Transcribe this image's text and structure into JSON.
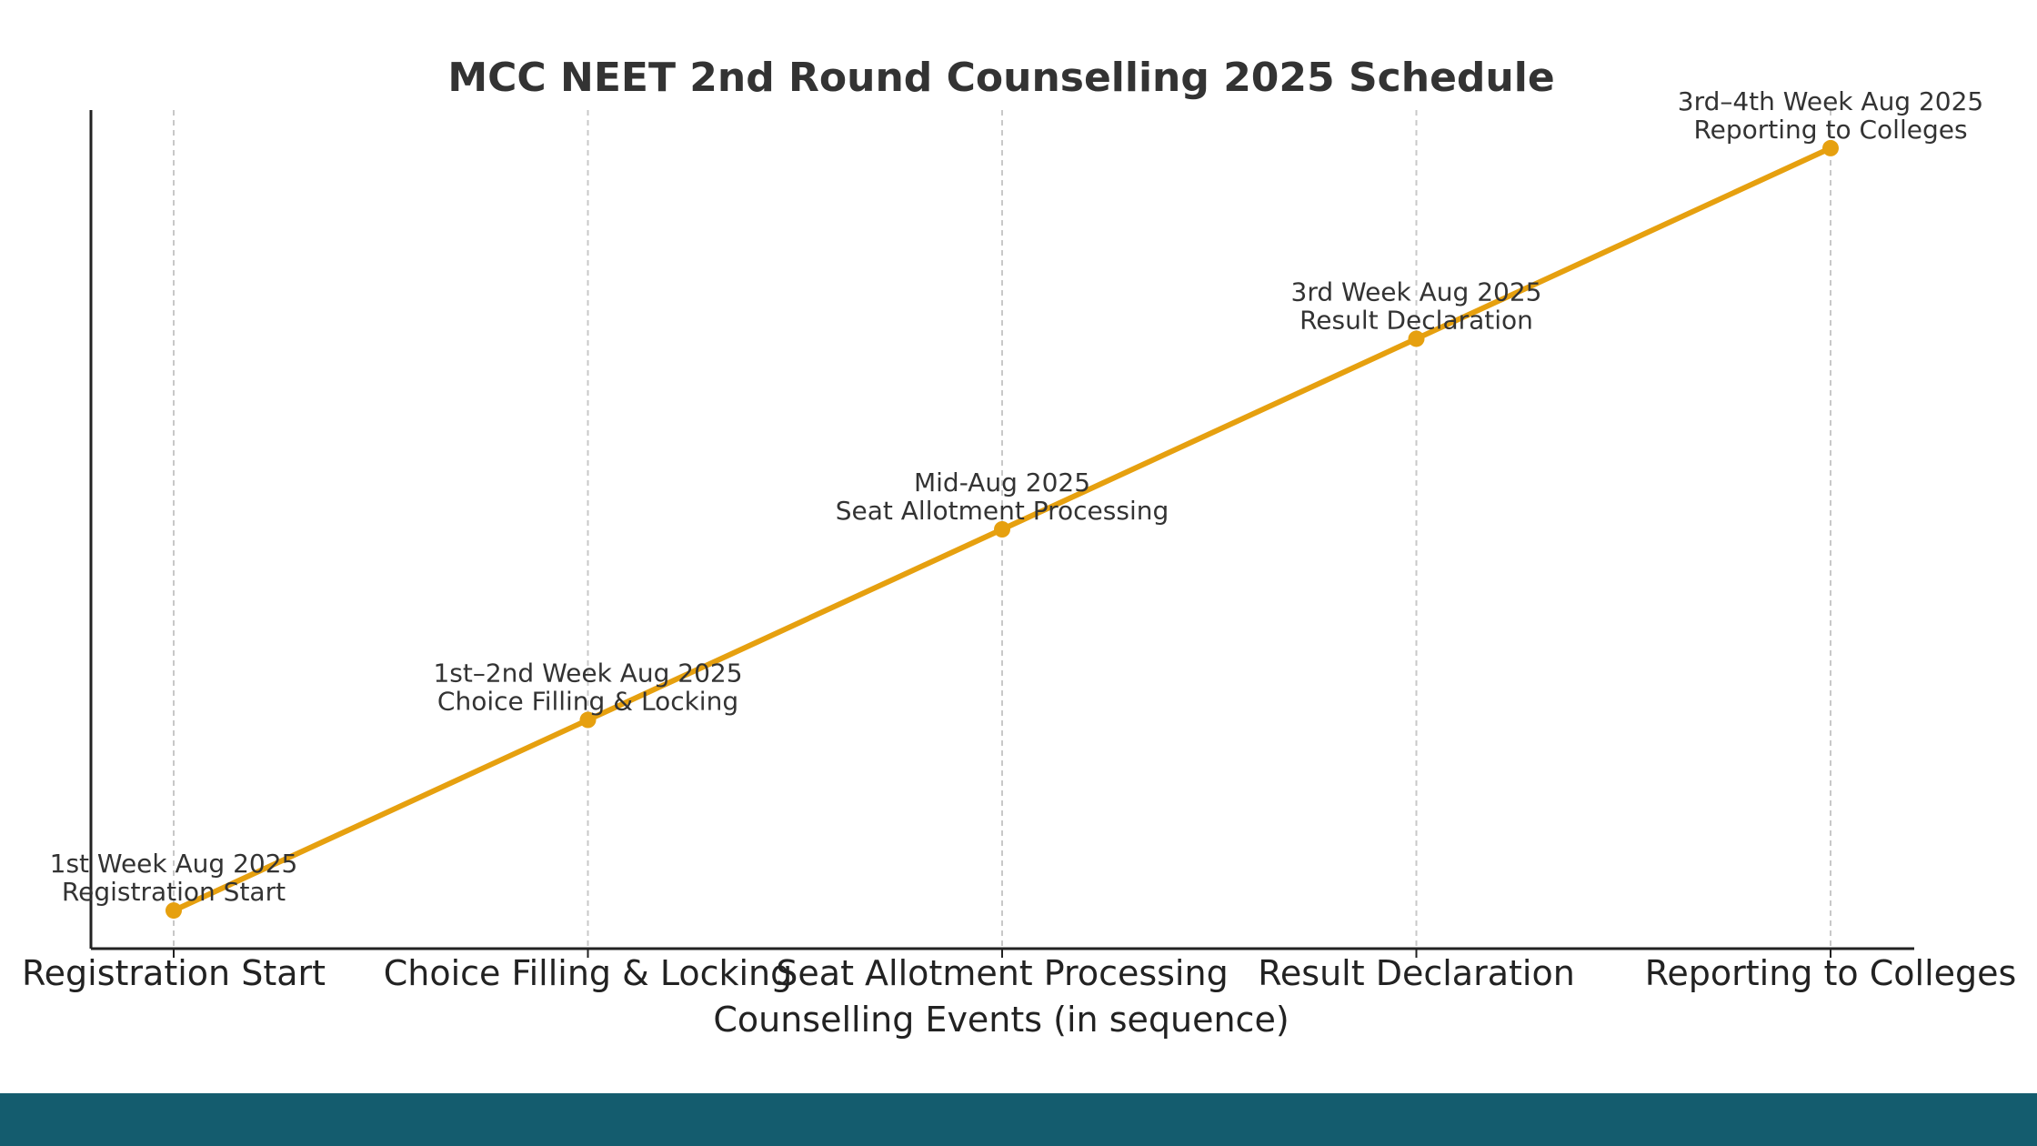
{
  "chart_data": {
    "type": "line",
    "title": "MCC NEET 2nd Round Counselling 2025 Schedule",
    "xlabel": "Counselling Events (in sequence)",
    "ylabel": "",
    "categories": [
      "Registration Start",
      "Choice Filling & Locking",
      "Seat Allotment Processing",
      "Result Declaration",
      "Reporting to Colleges"
    ],
    "series": [
      {
        "values": [
          1,
          2,
          3,
          4,
          5
        ]
      }
    ],
    "annotations": [
      {
        "date": "1st Week Aug 2025",
        "event": "Registration Start"
      },
      {
        "date": "1st–2nd Week Aug 2025",
        "event": "Choice Filling & Locking"
      },
      {
        "date": "Mid-Aug 2025",
        "event": "Seat Allotment Processing"
      },
      {
        "date": "3rd Week Aug 2025",
        "event": "Result Declaration"
      },
      {
        "date": "3rd–4th Week Aug 2025",
        "event": "Reporting to Colleges"
      }
    ],
    "ylim": [
      0.8,
      5.2
    ],
    "grid": "vertical-dashed",
    "legend": "none",
    "colors": {
      "line": "#e6a00f",
      "grid": "#c8c8c8",
      "axis": "#222222",
      "footer": "#145c6e"
    }
  }
}
